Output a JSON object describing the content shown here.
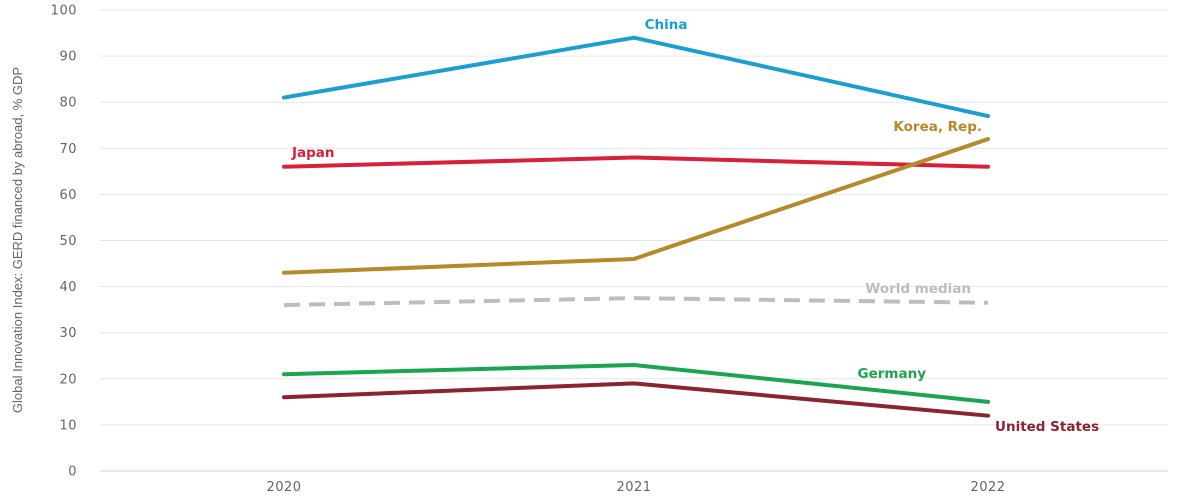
{
  "chart_data": {
    "type": "line",
    "title": "",
    "xlabel": "",
    "ylabel": "Global Innovation Index: GERD financed by abroad, % GDP",
    "categories": [
      "2020",
      "2021",
      "2022"
    ],
    "ylim": [
      0,
      100
    ],
    "yticks": [
      0,
      10,
      20,
      30,
      40,
      50,
      60,
      70,
      80,
      90,
      100
    ],
    "grid": true,
    "legend": "inline labels",
    "series": [
      {
        "name": "China",
        "values": [
          81,
          94,
          77
        ],
        "color": "#1b9fd3",
        "dashed": false
      },
      {
        "name": "Japan",
        "values": [
          66,
          68,
          66
        ],
        "color": "#d8203a",
        "dashed": false
      },
      {
        "name": "Korea, Rep.",
        "values": [
          43,
          46,
          72
        ],
        "color": "#b48a2a",
        "dashed": false
      },
      {
        "name": "World median",
        "values": [
          36,
          37.5,
          36.5
        ],
        "color": "#bdbdbd",
        "dashed": true
      },
      {
        "name": "Germany",
        "values": [
          21,
          23,
          15
        ],
        "color": "#1aa552",
        "dashed": false
      },
      {
        "name": "United States",
        "values": [
          16,
          19,
          12
        ],
        "color": "#8a2430",
        "dashed": false
      }
    ]
  }
}
